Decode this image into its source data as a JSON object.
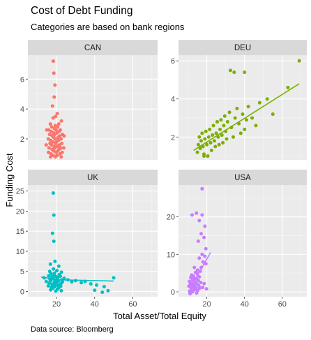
{
  "title": "Cost of Debt Funding",
  "subtitle": "Categories are based on bank regions",
  "caption": "Data source: Bloomberg",
  "chart_data": {
    "type": "scatter",
    "xlabel": "Total Asset/Total Equity",
    "ylabel": "Funding Cost",
    "facet_layout": "2x2, shared x axis, free y axes",
    "x_ticks": [
      20,
      40,
      60
    ],
    "xlim": [
      5,
      73
    ],
    "smooth": "linear trend line per panel",
    "panels": [
      {
        "name": "CAN",
        "color": "#F8766D",
        "ylim": [
          0.6,
          7.6
        ],
        "y_ticks": [
          2,
          4,
          6
        ],
        "trend": null,
        "points": [
          [
            18.3,
            7.2
          ],
          [
            18.6,
            6.4
          ],
          [
            19.2,
            5.6
          ],
          [
            18.8,
            4.8
          ],
          [
            17.9,
            4.2
          ],
          [
            20.4,
            3.7
          ],
          [
            19.5,
            3.5
          ],
          [
            18.2,
            3.4
          ],
          [
            22.6,
            3.2
          ],
          [
            16.8,
            3.0
          ],
          [
            21.2,
            3.0
          ],
          [
            19.4,
            2.9
          ],
          [
            17.5,
            2.8
          ],
          [
            20.6,
            2.8
          ],
          [
            18.9,
            2.7
          ],
          [
            15.9,
            2.6
          ],
          [
            22.0,
            2.6
          ],
          [
            19.7,
            2.6
          ],
          [
            17.2,
            2.5
          ],
          [
            21.4,
            2.5
          ],
          [
            18.4,
            2.4
          ],
          [
            20.2,
            2.4
          ],
          [
            16.4,
            2.3
          ],
          [
            23.1,
            2.3
          ],
          [
            19.0,
            2.3
          ],
          [
            17.8,
            2.2
          ],
          [
            21.7,
            2.2
          ],
          [
            18.6,
            2.1
          ],
          [
            20.8,
            2.1
          ],
          [
            15.7,
            2.0
          ],
          [
            22.4,
            2.0
          ],
          [
            19.3,
            2.0
          ],
          [
            17.0,
            1.9
          ],
          [
            21.0,
            1.9
          ],
          [
            18.1,
            1.8
          ],
          [
            20.0,
            1.8
          ],
          [
            16.6,
            1.7
          ],
          [
            22.8,
            1.7
          ],
          [
            19.6,
            1.7
          ],
          [
            17.4,
            1.6
          ],
          [
            21.5,
            1.6
          ],
          [
            18.8,
            1.5
          ],
          [
            20.5,
            1.5
          ],
          [
            16.1,
            1.4
          ],
          [
            22.2,
            1.4
          ],
          [
            19.1,
            1.4
          ],
          [
            17.7,
            1.3
          ],
          [
            21.3,
            1.3
          ],
          [
            18.5,
            1.2
          ],
          [
            20.7,
            1.2
          ],
          [
            15.8,
            1.1
          ],
          [
            23.0,
            1.1
          ],
          [
            19.8,
            1.1
          ],
          [
            17.1,
            1.0
          ],
          [
            21.8,
            1.0
          ],
          [
            18.3,
            0.9
          ],
          [
            20.3,
            0.9
          ],
          [
            16.9,
            0.8
          ],
          [
            22.5,
            0.8
          ],
          [
            19.4,
            0.8
          ],
          [
            14.9,
            2.6
          ],
          [
            24.0,
            2.2
          ],
          [
            14.6,
            1.6
          ],
          [
            23.8,
            1.4
          ]
        ]
      },
      {
        "name": "DEU",
        "color": "#7CAE00",
        "ylim": [
          0.8,
          6.3
        ],
        "y_ticks": [
          2,
          4,
          6
        ],
        "trend": [
          [
            13,
            1.3
          ],
          [
            69,
            4.8
          ]
        ],
        "points": [
          [
            15,
            1.2
          ],
          [
            15.5,
            1.6
          ],
          [
            16,
            2.0
          ],
          [
            16.5,
            1.4
          ],
          [
            17,
            1.8
          ],
          [
            17.5,
            2.2
          ],
          [
            18,
            1.5
          ],
          [
            18.5,
            1.1
          ],
          [
            19,
            1.9
          ],
          [
            19.5,
            2.3
          ],
          [
            20,
            1.6
          ],
          [
            20.5,
            1.0
          ],
          [
            21,
            2.0
          ],
          [
            21.5,
            2.4
          ],
          [
            22,
            1.7
          ],
          [
            22.5,
            1.3
          ],
          [
            23,
            2.1
          ],
          [
            23.5,
            2.6
          ],
          [
            24,
            1.8
          ],
          [
            24.5,
            1.5
          ],
          [
            25,
            2.2
          ],
          [
            25.5,
            2.8
          ],
          [
            26,
            2.0
          ],
          [
            26.5,
            1.6
          ],
          [
            27,
            2.4
          ],
          [
            27.5,
            2.9
          ],
          [
            28,
            2.1
          ],
          [
            28.5,
            1.7
          ],
          [
            29,
            2.6
          ],
          [
            29.5,
            3.1
          ],
          [
            30,
            2.3
          ],
          [
            30.5,
            1.9
          ],
          [
            31,
            2.8
          ],
          [
            32,
            3.3
          ],
          [
            33,
            2.5
          ],
          [
            34,
            2.0
          ],
          [
            35,
            3.0
          ],
          [
            36,
            3.5
          ],
          [
            37,
            2.7
          ],
          [
            38,
            2.2
          ],
          [
            39,
            3.2
          ],
          [
            40,
            2.4
          ],
          [
            41,
            2.9
          ],
          [
            42,
            3.6
          ],
          [
            44,
            3.0
          ],
          [
            46,
            2.6
          ],
          [
            48,
            3.8
          ],
          [
            52,
            4.0
          ],
          [
            55,
            3.2
          ],
          [
            63,
            4.6
          ],
          [
            69,
            6.0
          ],
          [
            32.5,
            5.5
          ],
          [
            34.5,
            5.4
          ],
          [
            40,
            5.4
          ],
          [
            18.5,
            1.0
          ]
        ]
      },
      {
        "name": "UK",
        "color": "#00BFC4",
        "ylim": [
          -1.3,
          26.5
        ],
        "y_ticks": [
          0,
          5,
          10,
          15,
          20,
          25
        ],
        "trend": [
          [
            12,
            3.6
          ],
          [
            22,
            2.9
          ],
          [
            50,
            2.6
          ]
        ],
        "points": [
          [
            18.3,
            24.5
          ],
          [
            18.6,
            19.0
          ],
          [
            17.9,
            14.5
          ],
          [
            18.6,
            12.5
          ],
          [
            19.2,
            7.5
          ],
          [
            16.8,
            6.8
          ],
          [
            21.2,
            6.3
          ],
          [
            18.4,
            5.6
          ],
          [
            20.2,
            5.2
          ],
          [
            16.4,
            5.0
          ],
          [
            22.6,
            4.8
          ],
          [
            19.0,
            4.6
          ],
          [
            17.2,
            4.4
          ],
          [
            21.4,
            4.2
          ],
          [
            18.8,
            4.0
          ],
          [
            15.9,
            3.9
          ],
          [
            22.0,
            3.8
          ],
          [
            19.7,
            3.7
          ],
          [
            17.5,
            3.6
          ],
          [
            20.6,
            3.5
          ],
          [
            13.5,
            3.4
          ],
          [
            24.0,
            3.3
          ],
          [
            18.2,
            3.2
          ],
          [
            20.4,
            3.1
          ],
          [
            16.6,
            3.0
          ],
          [
            22.8,
            2.9
          ],
          [
            19.3,
            2.8
          ],
          [
            17.0,
            2.7
          ],
          [
            21.0,
            2.6
          ],
          [
            14.6,
            2.5
          ],
          [
            23.1,
            2.4
          ],
          [
            18.9,
            2.3
          ],
          [
            20.0,
            2.2
          ],
          [
            16.1,
            2.1
          ],
          [
            22.4,
            2.0
          ],
          [
            19.5,
            1.9
          ],
          [
            17.7,
            1.8
          ],
          [
            21.7,
            1.7
          ],
          [
            18.6,
            1.6
          ],
          [
            20.8,
            1.5
          ],
          [
            15.7,
            1.4
          ],
          [
            22.2,
            1.3
          ],
          [
            19.1,
            1.2
          ],
          [
            17.4,
            1.1
          ],
          [
            21.3,
            1.0
          ],
          [
            18.1,
            0.8
          ],
          [
            20.5,
            0.6
          ],
          [
            16.9,
            0.4
          ],
          [
            22.5,
            0.2
          ],
          [
            19.6,
            0.1
          ],
          [
            26,
            2.9
          ],
          [
            28,
            2.4
          ],
          [
            30,
            2.7
          ],
          [
            33,
            2.2
          ],
          [
            35,
            2.5
          ],
          [
            38,
            1.9
          ],
          [
            41,
            1.6
          ],
          [
            40,
            0.3
          ],
          [
            44,
            -0.2
          ],
          [
            47,
            0.2
          ],
          [
            50,
            3.4
          ],
          [
            45,
            1.2
          ]
        ]
      },
      {
        "name": "USA",
        "color": "#C77CFF",
        "ylim": [
          -1.3,
          28.5
        ],
        "y_ticks": [
          0,
          10,
          20
        ],
        "trend": [
          [
            11,
            0.8
          ],
          [
            22,
            10.5
          ]
        ],
        "points": [
          [
            17.5,
            27.5
          ],
          [
            14.5,
            21.0
          ],
          [
            12.2,
            20.5
          ],
          [
            17.5,
            20.5
          ],
          [
            16.0,
            19.0
          ],
          [
            19.0,
            17.5
          ],
          [
            17.0,
            15.5
          ],
          [
            18.5,
            14.5
          ],
          [
            15.5,
            13.5
          ],
          [
            19.5,
            11.5
          ],
          [
            17.5,
            10.0
          ],
          [
            19.0,
            9.5
          ],
          [
            16.0,
            9.0
          ],
          [
            18.0,
            8.0
          ],
          [
            19.5,
            7.5
          ],
          [
            17.0,
            6.5
          ],
          [
            13.4,
            6.5
          ],
          [
            16.5,
            5.5
          ],
          [
            14.0,
            5.2
          ],
          [
            15.0,
            4.8
          ],
          [
            12.0,
            4.5
          ],
          [
            13.0,
            4.2
          ],
          [
            16.0,
            4.0
          ],
          [
            11.5,
            3.8
          ],
          [
            14.5,
            3.5
          ],
          [
            12.5,
            3.2
          ],
          [
            15.5,
            3.0
          ],
          [
            10.8,
            2.8
          ],
          [
            13.8,
            2.6
          ],
          [
            16.8,
            2.5
          ],
          [
            12.0,
            2.3
          ],
          [
            14.8,
            2.1
          ],
          [
            11.2,
            2.0
          ],
          [
            13.3,
            1.8
          ],
          [
            15.8,
            1.6
          ],
          [
            10.5,
            1.5
          ],
          [
            12.8,
            1.3
          ],
          [
            14.2,
            1.1
          ],
          [
            16.2,
            1.0
          ],
          [
            11.8,
            0.8
          ],
          [
            13.6,
            0.6
          ],
          [
            15.2,
            0.4
          ],
          [
            10.9,
            0.2
          ],
          [
            12.4,
            0.0
          ],
          [
            14.6,
            -0.3
          ],
          [
            17.8,
            1.2
          ],
          [
            18.6,
            2.2
          ],
          [
            19.8,
            0.8
          ],
          [
            11.1,
            -0.5
          ],
          [
            13.1,
            3.6
          ],
          [
            15.1,
            5.8
          ]
        ]
      }
    ]
  }
}
